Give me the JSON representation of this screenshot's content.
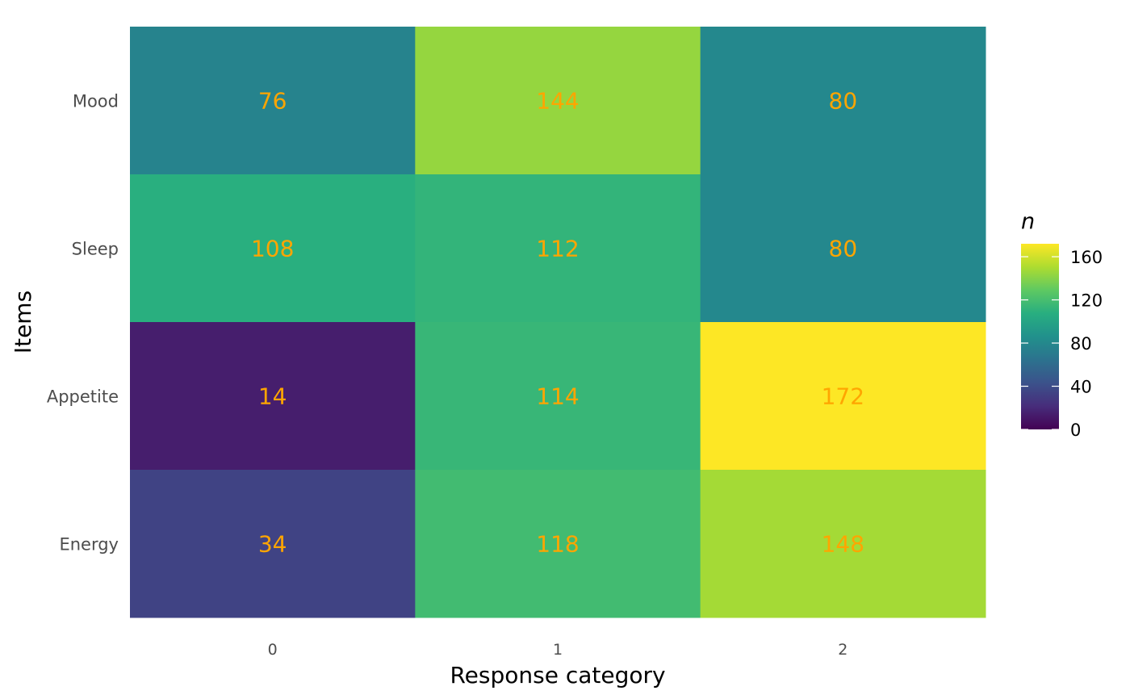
{
  "chart_data": {
    "type": "heatmap",
    "xlabel": "Response category",
    "ylabel": "Items",
    "x_categories": [
      "0",
      "1",
      "2"
    ],
    "y_categories": [
      "Energy",
      "Appetite",
      "Sleep",
      "Mood"
    ],
    "values": [
      {
        "y": "Mood",
        "x": "0",
        "n": 76
      },
      {
        "y": "Mood",
        "x": "1",
        "n": 144
      },
      {
        "y": "Mood",
        "x": "2",
        "n": 80
      },
      {
        "y": "Sleep",
        "x": "0",
        "n": 108
      },
      {
        "y": "Sleep",
        "x": "1",
        "n": 112
      },
      {
        "y": "Sleep",
        "x": "2",
        "n": 80
      },
      {
        "y": "Appetite",
        "x": "0",
        "n": 14
      },
      {
        "y": "Appetite",
        "x": "1",
        "n": 114
      },
      {
        "y": "Appetite",
        "x": "2",
        "n": 172
      },
      {
        "y": "Energy",
        "x": "0",
        "n": 34
      },
      {
        "y": "Energy",
        "x": "1",
        "n": 118
      },
      {
        "y": "Energy",
        "x": "2",
        "n": 148
      }
    ],
    "legend": {
      "title": "n",
      "range": [
        0,
        172
      ],
      "ticks": [
        0,
        40,
        80,
        120,
        160
      ],
      "placement": "right"
    },
    "colorscale": "viridis",
    "label_color": "#FFA500",
    "grid": false
  }
}
